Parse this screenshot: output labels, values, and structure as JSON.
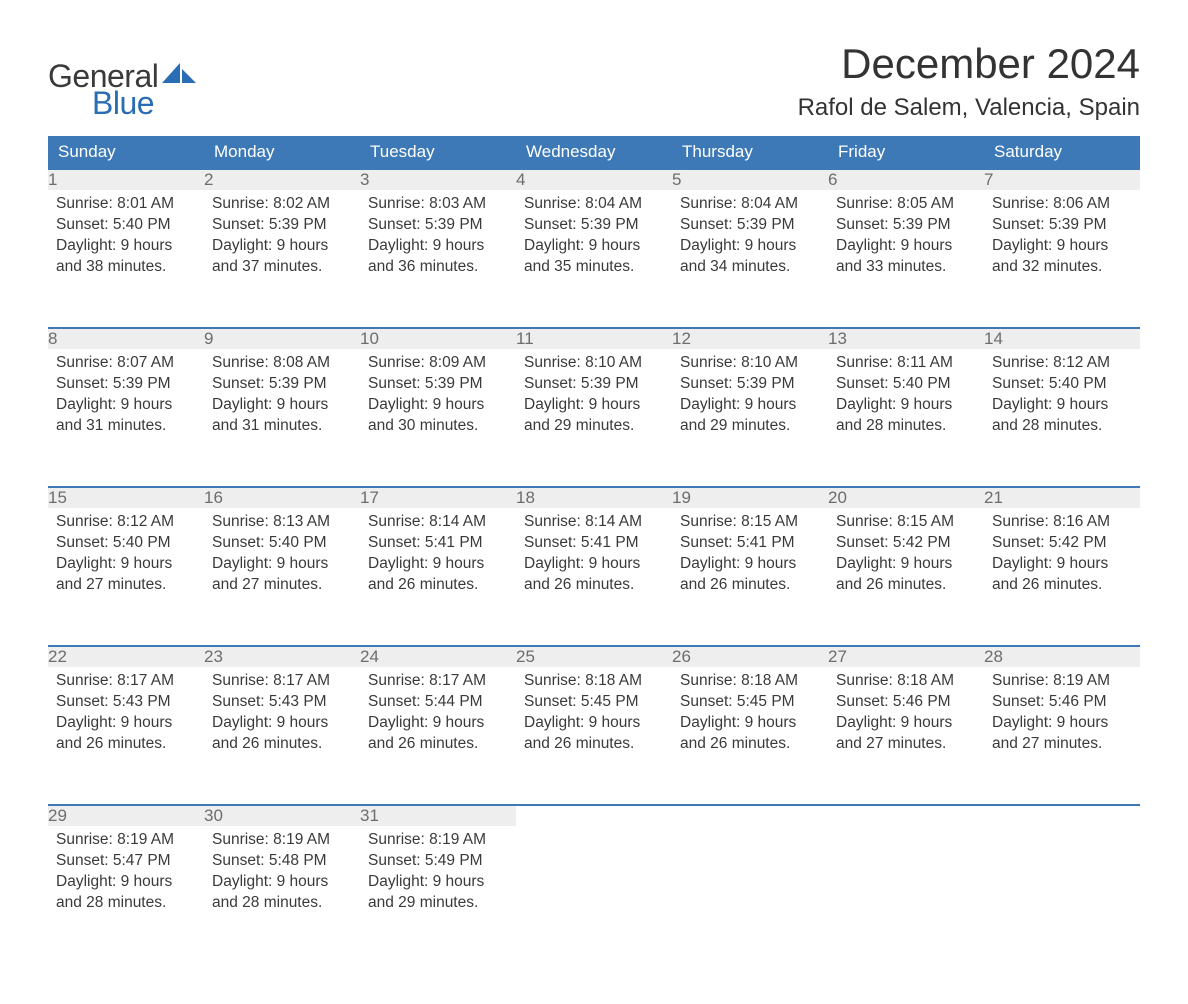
{
  "brand": {
    "text_general": "General",
    "text_blue": "Blue",
    "sail_color": "#2a6db5",
    "general_color": "#3a3a3a",
    "blue_color": "#2a6db5"
  },
  "header": {
    "month_title": "December 2024",
    "location": "Rafol de Salem, Valencia, Spain"
  },
  "colors": {
    "header_bg": "#3d79b6",
    "header_text": "#ffffff",
    "daynum_bg": "#eeeeee",
    "daynum_text": "#6d6d6d",
    "body_text": "#3a3a3a",
    "row_border": "#3d79b6",
    "page_bg": "#ffffff"
  },
  "typography": {
    "month_title_fontsize": 42,
    "location_fontsize": 24,
    "weekday_fontsize": 17,
    "daynum_fontsize": 17,
    "cell_fontsize": 15.5,
    "logo_fontsize": 32
  },
  "calendar": {
    "weekdays": [
      "Sunday",
      "Monday",
      "Tuesday",
      "Wednesday",
      "Thursday",
      "Friday",
      "Saturday"
    ],
    "weeks": [
      [
        {
          "day": "1",
          "sunrise": "Sunrise: 8:01 AM",
          "sunset": "Sunset: 5:40 PM",
          "daylight1": "Daylight: 9 hours",
          "daylight2": "and 38 minutes."
        },
        {
          "day": "2",
          "sunrise": "Sunrise: 8:02 AM",
          "sunset": "Sunset: 5:39 PM",
          "daylight1": "Daylight: 9 hours",
          "daylight2": "and 37 minutes."
        },
        {
          "day": "3",
          "sunrise": "Sunrise: 8:03 AM",
          "sunset": "Sunset: 5:39 PM",
          "daylight1": "Daylight: 9 hours",
          "daylight2": "and 36 minutes."
        },
        {
          "day": "4",
          "sunrise": "Sunrise: 8:04 AM",
          "sunset": "Sunset: 5:39 PM",
          "daylight1": "Daylight: 9 hours",
          "daylight2": "and 35 minutes."
        },
        {
          "day": "5",
          "sunrise": "Sunrise: 8:04 AM",
          "sunset": "Sunset: 5:39 PM",
          "daylight1": "Daylight: 9 hours",
          "daylight2": "and 34 minutes."
        },
        {
          "day": "6",
          "sunrise": "Sunrise: 8:05 AM",
          "sunset": "Sunset: 5:39 PM",
          "daylight1": "Daylight: 9 hours",
          "daylight2": "and 33 minutes."
        },
        {
          "day": "7",
          "sunrise": "Sunrise: 8:06 AM",
          "sunset": "Sunset: 5:39 PM",
          "daylight1": "Daylight: 9 hours",
          "daylight2": "and 32 minutes."
        }
      ],
      [
        {
          "day": "8",
          "sunrise": "Sunrise: 8:07 AM",
          "sunset": "Sunset: 5:39 PM",
          "daylight1": "Daylight: 9 hours",
          "daylight2": "and 31 minutes."
        },
        {
          "day": "9",
          "sunrise": "Sunrise: 8:08 AM",
          "sunset": "Sunset: 5:39 PM",
          "daylight1": "Daylight: 9 hours",
          "daylight2": "and 31 minutes."
        },
        {
          "day": "10",
          "sunrise": "Sunrise: 8:09 AM",
          "sunset": "Sunset: 5:39 PM",
          "daylight1": "Daylight: 9 hours",
          "daylight2": "and 30 minutes."
        },
        {
          "day": "11",
          "sunrise": "Sunrise: 8:10 AM",
          "sunset": "Sunset: 5:39 PM",
          "daylight1": "Daylight: 9 hours",
          "daylight2": "and 29 minutes."
        },
        {
          "day": "12",
          "sunrise": "Sunrise: 8:10 AM",
          "sunset": "Sunset: 5:39 PM",
          "daylight1": "Daylight: 9 hours",
          "daylight2": "and 29 minutes."
        },
        {
          "day": "13",
          "sunrise": "Sunrise: 8:11 AM",
          "sunset": "Sunset: 5:40 PM",
          "daylight1": "Daylight: 9 hours",
          "daylight2": "and 28 minutes."
        },
        {
          "day": "14",
          "sunrise": "Sunrise: 8:12 AM",
          "sunset": "Sunset: 5:40 PM",
          "daylight1": "Daylight: 9 hours",
          "daylight2": "and 28 minutes."
        }
      ],
      [
        {
          "day": "15",
          "sunrise": "Sunrise: 8:12 AM",
          "sunset": "Sunset: 5:40 PM",
          "daylight1": "Daylight: 9 hours",
          "daylight2": "and 27 minutes."
        },
        {
          "day": "16",
          "sunrise": "Sunrise: 8:13 AM",
          "sunset": "Sunset: 5:40 PM",
          "daylight1": "Daylight: 9 hours",
          "daylight2": "and 27 minutes."
        },
        {
          "day": "17",
          "sunrise": "Sunrise: 8:14 AM",
          "sunset": "Sunset: 5:41 PM",
          "daylight1": "Daylight: 9 hours",
          "daylight2": "and 26 minutes."
        },
        {
          "day": "18",
          "sunrise": "Sunrise: 8:14 AM",
          "sunset": "Sunset: 5:41 PM",
          "daylight1": "Daylight: 9 hours",
          "daylight2": "and 26 minutes."
        },
        {
          "day": "19",
          "sunrise": "Sunrise: 8:15 AM",
          "sunset": "Sunset: 5:41 PM",
          "daylight1": "Daylight: 9 hours",
          "daylight2": "and 26 minutes."
        },
        {
          "day": "20",
          "sunrise": "Sunrise: 8:15 AM",
          "sunset": "Sunset: 5:42 PM",
          "daylight1": "Daylight: 9 hours",
          "daylight2": "and 26 minutes."
        },
        {
          "day": "21",
          "sunrise": "Sunrise: 8:16 AM",
          "sunset": "Sunset: 5:42 PM",
          "daylight1": "Daylight: 9 hours",
          "daylight2": "and 26 minutes."
        }
      ],
      [
        {
          "day": "22",
          "sunrise": "Sunrise: 8:17 AM",
          "sunset": "Sunset: 5:43 PM",
          "daylight1": "Daylight: 9 hours",
          "daylight2": "and 26 minutes."
        },
        {
          "day": "23",
          "sunrise": "Sunrise: 8:17 AM",
          "sunset": "Sunset: 5:43 PM",
          "daylight1": "Daylight: 9 hours",
          "daylight2": "and 26 minutes."
        },
        {
          "day": "24",
          "sunrise": "Sunrise: 8:17 AM",
          "sunset": "Sunset: 5:44 PM",
          "daylight1": "Daylight: 9 hours",
          "daylight2": "and 26 minutes."
        },
        {
          "day": "25",
          "sunrise": "Sunrise: 8:18 AM",
          "sunset": "Sunset: 5:45 PM",
          "daylight1": "Daylight: 9 hours",
          "daylight2": "and 26 minutes."
        },
        {
          "day": "26",
          "sunrise": "Sunrise: 8:18 AM",
          "sunset": "Sunset: 5:45 PM",
          "daylight1": "Daylight: 9 hours",
          "daylight2": "and 26 minutes."
        },
        {
          "day": "27",
          "sunrise": "Sunrise: 8:18 AM",
          "sunset": "Sunset: 5:46 PM",
          "daylight1": "Daylight: 9 hours",
          "daylight2": "and 27 minutes."
        },
        {
          "day": "28",
          "sunrise": "Sunrise: 8:19 AM",
          "sunset": "Sunset: 5:46 PM",
          "daylight1": "Daylight: 9 hours",
          "daylight2": "and 27 minutes."
        }
      ],
      [
        {
          "day": "29",
          "sunrise": "Sunrise: 8:19 AM",
          "sunset": "Sunset: 5:47 PM",
          "daylight1": "Daylight: 9 hours",
          "daylight2": "and 28 minutes."
        },
        {
          "day": "30",
          "sunrise": "Sunrise: 8:19 AM",
          "sunset": "Sunset: 5:48 PM",
          "daylight1": "Daylight: 9 hours",
          "daylight2": "and 28 minutes."
        },
        {
          "day": "31",
          "sunrise": "Sunrise: 8:19 AM",
          "sunset": "Sunset: 5:49 PM",
          "daylight1": "Daylight: 9 hours",
          "daylight2": "and 29 minutes."
        },
        {
          "day": "",
          "sunrise": "",
          "sunset": "",
          "daylight1": "",
          "daylight2": ""
        },
        {
          "day": "",
          "sunrise": "",
          "sunset": "",
          "daylight1": "",
          "daylight2": ""
        },
        {
          "day": "",
          "sunrise": "",
          "sunset": "",
          "daylight1": "",
          "daylight2": ""
        },
        {
          "day": "",
          "sunrise": "",
          "sunset": "",
          "daylight1": "",
          "daylight2": ""
        }
      ]
    ]
  }
}
